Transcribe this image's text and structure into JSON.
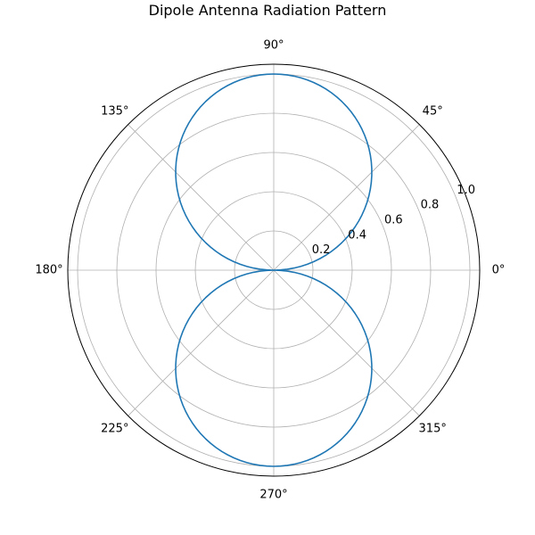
{
  "chart_data": {
    "type": "line",
    "projection": "polar",
    "title": "Dipole Antenna Radiation Pattern",
    "theta_ticks": [
      0,
      45,
      90,
      135,
      180,
      225,
      270,
      315
    ],
    "theta_tick_labels": [
      "0°",
      "45°",
      "90°",
      "135°",
      "180°",
      "225°",
      "270°",
      "315°"
    ],
    "r_ticks": [
      0.2,
      0.4,
      0.6,
      0.8,
      1.0
    ],
    "r_tick_labels": [
      "0.2",
      "0.4",
      "0.6",
      "0.8",
      "1.0"
    ],
    "rlim": [
      0,
      1.05
    ],
    "grid": true,
    "legend": "none",
    "series": [
      {
        "theta_deg_start": 0,
        "theta_deg_end": 360,
        "theta_deg_step": 2,
        "r_formula": "|sin(theta)|",
        "color": "#1f77b4"
      }
    ]
  },
  "colors": {
    "series": "#1f77b4",
    "grid": "#b0b0b0",
    "frame": "#000000"
  }
}
